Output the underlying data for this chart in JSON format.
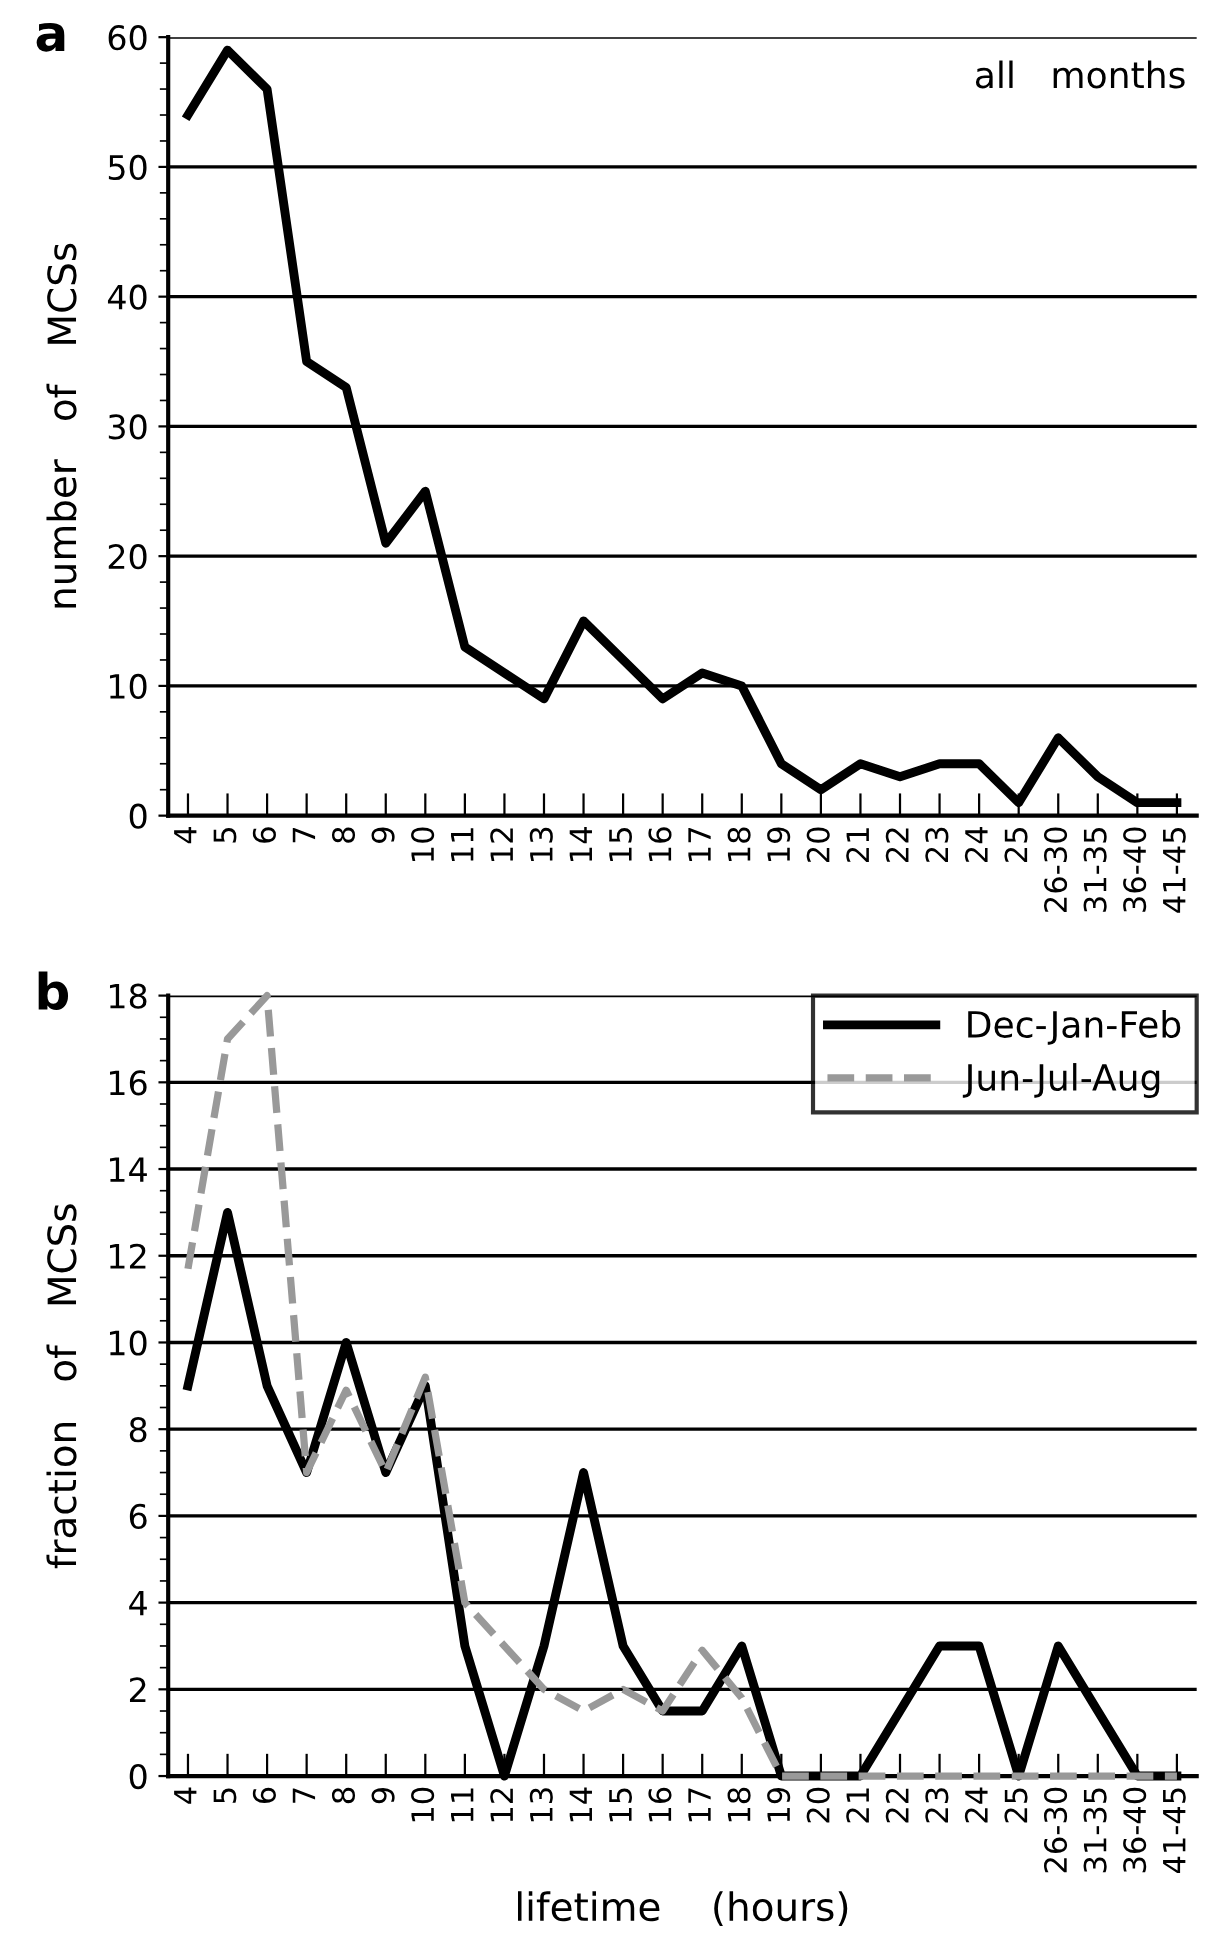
{
  "chart_data": [
    {
      "type": "line",
      "title": "a",
      "ylabel": "number   of   MCSs",
      "categories": [
        "4",
        "5",
        "6",
        "7",
        "8",
        "9",
        "10",
        "11",
        "12",
        "13",
        "14",
        "15",
        "16",
        "17",
        "18",
        "19",
        "20",
        "21",
        "22",
        "23",
        "24",
        "25",
        "26-30",
        "31-35",
        "36-40",
        "41-45"
      ],
      "series": [
        {
          "color": "#000000",
          "values": [
            54,
            59,
            56,
            35,
            33,
            21,
            25,
            13,
            11,
            9,
            15,
            12,
            9,
            11,
            10,
            4,
            2,
            4,
            3,
            4,
            4,
            1,
            6,
            3,
            1,
            1
          ]
        }
      ],
      "ylim": [
        0,
        60
      ],
      "yticks": [
        0,
        10,
        20,
        30,
        40,
        50,
        60
      ],
      "grid": "y",
      "line_style": "solid",
      "marker": "none",
      "legend": false,
      "annotations": [
        "all   months"
      ]
    },
    {
      "type": "line",
      "title": "b",
      "ylabel": "fraction   of   MCSs",
      "xlabel": "lifetime    (hours)",
      "categories": [
        "4",
        "5",
        "6",
        "7",
        "8",
        "9",
        "10",
        "11",
        "12",
        "13",
        "14",
        "15",
        "16",
        "17",
        "18",
        "19",
        "20",
        "21",
        "22",
        "23",
        "24",
        "25",
        "26-30",
        "31-35",
        "36-40",
        "41-45"
      ],
      "series": [
        {
          "name": "Dec-Jan-Feb",
          "color": "#000000",
          "line_style": "solid",
          "values": [
            9,
            13,
            9,
            7,
            10,
            7,
            9,
            3,
            0,
            3,
            7,
            3,
            1.5,
            1.5,
            3,
            0,
            0,
            0,
            1.5,
            3,
            3,
            0,
            3,
            1.5,
            0,
            0
          ]
        },
        {
          "name": "Jun-Jul-Aug",
          "color": "#999999",
          "line_style": "dashed",
          "values": [
            11.7,
            17,
            18,
            7,
            8.9,
            7,
            9.2,
            4,
            3,
            2,
            1.5,
            2,
            1.5,
            2.9,
            1.8,
            0,
            0,
            0,
            0,
            0,
            0,
            0,
            0,
            0,
            0,
            0
          ]
        }
      ],
      "ylim": [
        0,
        18
      ],
      "yticks": [
        0,
        2,
        4,
        6,
        8,
        10,
        12,
        14,
        16,
        18
      ],
      "grid": "y",
      "marker": "none",
      "legend": "top right"
    }
  ]
}
